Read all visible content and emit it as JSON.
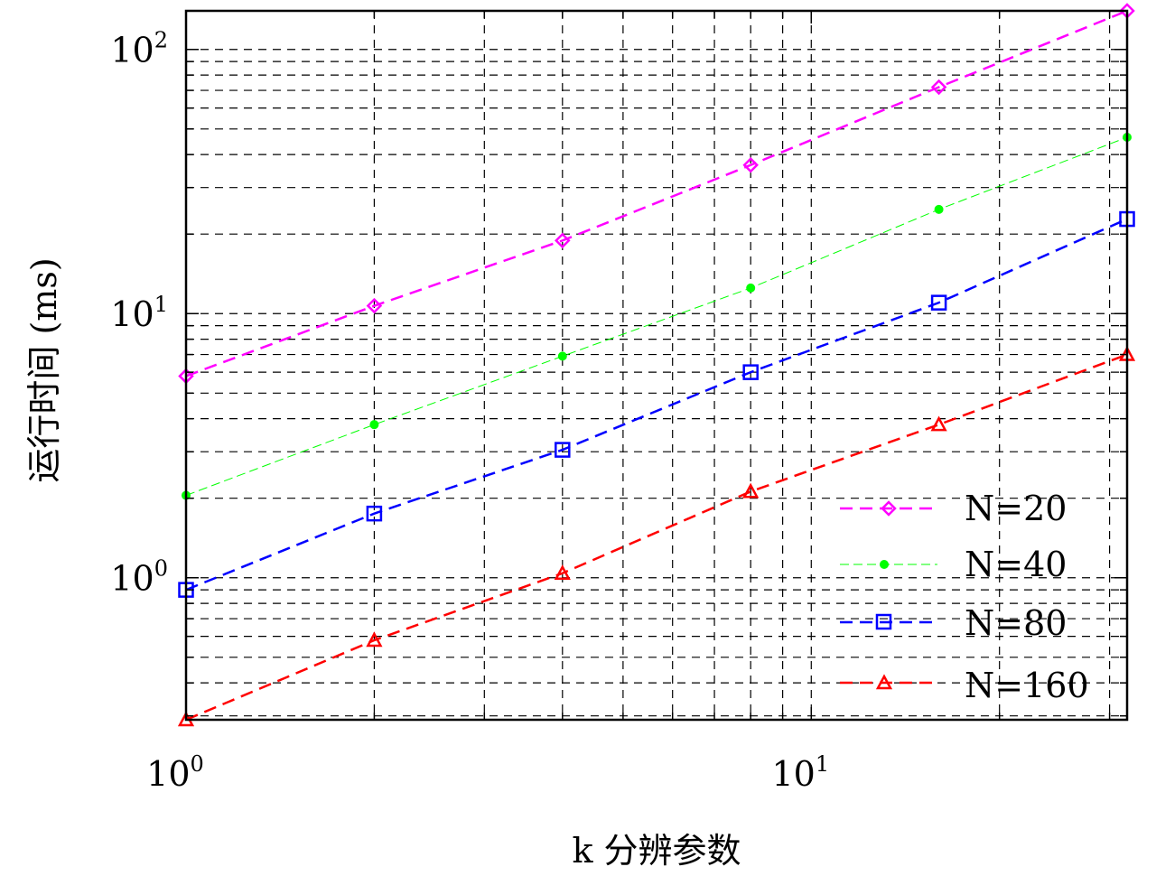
{
  "chart_data": {
    "type": "line",
    "title": "",
    "xlabel": "k 分辨参数",
    "ylabel": "运行时间 (ms)",
    "x_scale": "log",
    "y_scale": "log",
    "xlim": [
      1,
      32
    ],
    "ylim": [
      0.29,
      140
    ],
    "grid": true,
    "legend_position": "bottom-right",
    "x_ticks": [
      {
        "value": 1,
        "base": "10",
        "exp": "0"
      },
      {
        "value": 10,
        "base": "10",
        "exp": "1"
      }
    ],
    "y_ticks": [
      {
        "value": 1,
        "base": "10",
        "exp": "0"
      },
      {
        "value": 10,
        "base": "10",
        "exp": "1"
      },
      {
        "value": 100,
        "base": "10",
        "exp": "2"
      }
    ],
    "x": [
      1,
      2,
      4,
      8,
      16,
      32
    ],
    "series": [
      {
        "name": "N=20",
        "color": "#ff00ff",
        "marker": "diamond",
        "values": [
          5.8,
          10.7,
          18.9,
          36.5,
          72,
          140
        ]
      },
      {
        "name": "N=40",
        "color": "#00ff00",
        "marker": "dot",
        "values": [
          2.05,
          3.8,
          6.9,
          12.5,
          24.8,
          46.5
        ]
      },
      {
        "name": "N=80",
        "color": "#0000ff",
        "marker": "square",
        "values": [
          0.9,
          1.75,
          3.05,
          6.0,
          11.0,
          22.8
        ]
      },
      {
        "name": "N=160",
        "color": "#ff0000",
        "marker": "triangle",
        "values": [
          0.29,
          0.58,
          1.04,
          2.12,
          3.8,
          7.0
        ]
      }
    ]
  }
}
